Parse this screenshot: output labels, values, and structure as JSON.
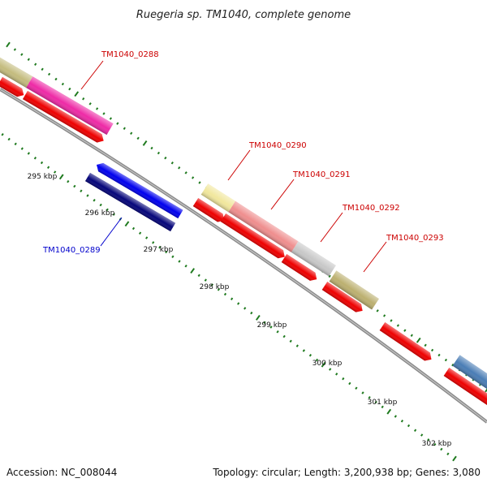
{
  "title": "Ruegeria sp. TM1040, complete genome",
  "footer": {
    "accession": "Accession: NC_008044",
    "summary": "Topology: circular; Length: 3,200,938 bp; Genes: 3,080"
  },
  "colors": {
    "backbone": "#8a8a8a",
    "tick": "#1f7a1f",
    "cds_forward": "#ee0000",
    "cds_reverse": "#0000ee",
    "label_forward": "#cc0000",
    "label_reverse": "#0000cc"
  },
  "scale_labels": [
    "295 kbp",
    "296 kbp",
    "297 kbp",
    "298 kbp",
    "299 kbp",
    "300 kbp",
    "301 kbp",
    "302 kbp"
  ],
  "gene_labels": [
    "TM1040_0288",
    "TM1040_0289",
    "TM1040_0290",
    "TM1040_0291",
    "TM1040_0292",
    "TM1040_0293"
  ]
}
